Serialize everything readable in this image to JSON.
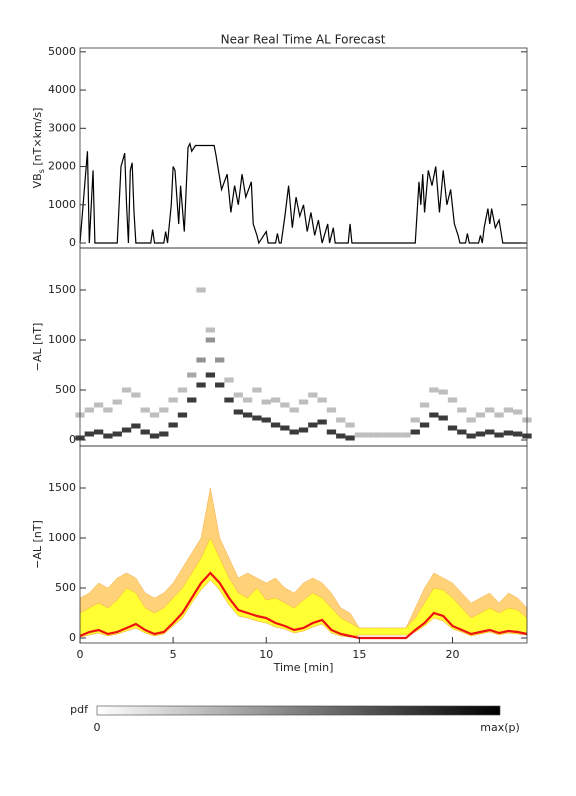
{
  "chart_data": [
    {
      "type": "line",
      "title": "Near Real Time AL Forecast",
      "ylabel": {
        "main": "VB",
        "sub": "s",
        "unit": " [nT×km/s]"
      },
      "color": "#000000",
      "xlim": [
        0,
        24
      ],
      "ylim": [
        -130,
        5100
      ],
      "yticks": [
        0,
        1000,
        2000,
        3000,
        4000,
        5000
      ],
      "x": [
        0,
        0.4,
        0.5,
        0.7,
        0.8,
        2.0,
        2.2,
        2.4,
        2.5,
        2.6,
        2.7,
        2.8,
        2.9,
        3.0,
        3.8,
        3.9,
        4.0,
        4.5,
        4.6,
        4.7,
        4.9,
        5.0,
        5.1,
        5.3,
        5.4,
        5.6,
        5.8,
        5.9,
        6.0,
        6.2,
        7.2,
        7.3,
        7.6,
        7.9,
        8.1,
        8.3,
        8.5,
        8.7,
        8.9,
        9.2,
        9.3,
        9.5,
        9.6,
        10.0,
        10.1,
        10.5,
        10.6,
        10.7,
        10.8,
        11.0,
        11.2,
        11.4,
        11.6,
        11.8,
        12.0,
        12.2,
        12.4,
        12.6,
        12.8,
        13.0,
        13.3,
        13.4,
        13.6,
        13.7,
        14.4,
        14.5,
        14.6,
        18.0,
        18.2,
        18.3,
        18.4,
        18.5,
        18.7,
        18.9,
        19.1,
        19.3,
        19.5,
        19.7,
        19.9,
        20.1,
        20.3,
        20.4,
        20.7,
        20.8,
        20.9,
        21.4,
        21.5,
        21.6,
        21.7,
        21.9,
        22.0,
        22.1,
        22.3,
        22.5,
        22.7,
        24
      ],
      "values": [
        0,
        2400,
        0,
        1900,
        0,
        0,
        2000,
        2350,
        1000,
        0,
        1900,
        2100,
        800,
        0,
        0,
        350,
        0,
        0,
        300,
        0,
        1000,
        2000,
        1900,
        500,
        1500,
        300,
        2500,
        2600,
        2400,
        2550,
        2550,
        2300,
        1400,
        1800,
        800,
        1500,
        1000,
        1800,
        1200,
        1600,
        500,
        200,
        0,
        300,
        0,
        0,
        250,
        0,
        0,
        700,
        1500,
        400,
        1200,
        700,
        1000,
        300,
        800,
        200,
        600,
        0,
        500,
        0,
        400,
        0,
        0,
        500,
        0,
        0,
        1600,
        1000,
        1800,
        800,
        1900,
        1500,
        2000,
        800,
        1900,
        1000,
        1400,
        500,
        200,
        0,
        0,
        250,
        0,
        0,
        200,
        0,
        400,
        900,
        500,
        900,
        400,
        600,
        0,
        0
      ]
    },
    {
      "type": "heatmap",
      "ylabel": "−AL [nT]",
      "color": "#000000",
      "xlim": [
        0,
        24
      ],
      "ylim": [
        -60,
        1920
      ],
      "yticks": [
        0,
        500,
        1000,
        1500
      ],
      "cell": [
        0.5,
        50
      ],
      "cells": [
        [
          0,
          20,
          0.9
        ],
        [
          0,
          250,
          0.3
        ],
        [
          0.5,
          60,
          0.9
        ],
        [
          0.5,
          300,
          0.3
        ],
        [
          1,
          80,
          0.9
        ],
        [
          1,
          350,
          0.3
        ],
        [
          1.5,
          40,
          0.9
        ],
        [
          1.5,
          300,
          0.3
        ],
        [
          2,
          60,
          0.9
        ],
        [
          2,
          380,
          0.3
        ],
        [
          2.5,
          100,
          0.9
        ],
        [
          2.5,
          500,
          0.3
        ],
        [
          3,
          140,
          0.9
        ],
        [
          3,
          450,
          0.3
        ],
        [
          3.5,
          80,
          0.9
        ],
        [
          3.5,
          300,
          0.3
        ],
        [
          4,
          40,
          0.9
        ],
        [
          4,
          250,
          0.3
        ],
        [
          4.5,
          60,
          0.9
        ],
        [
          4.5,
          300,
          0.3
        ],
        [
          5,
          150,
          0.9
        ],
        [
          5,
          400,
          0.3
        ],
        [
          5.5,
          250,
          0.9
        ],
        [
          5.5,
          500,
          0.3
        ],
        [
          6,
          400,
          0.9
        ],
        [
          6,
          650,
          0.4
        ],
        [
          6.5,
          550,
          0.9
        ],
        [
          6.5,
          800,
          0.5
        ],
        [
          7,
          650,
          0.9
        ],
        [
          7,
          1000,
          0.5
        ],
        [
          7,
          1100,
          0.3
        ],
        [
          6.5,
          1500,
          0.3
        ],
        [
          7.5,
          550,
          0.9
        ],
        [
          7.5,
          800,
          0.5
        ],
        [
          8,
          400,
          0.9
        ],
        [
          8,
          600,
          0.3
        ],
        [
          8.5,
          280,
          0.9
        ],
        [
          8.5,
          450,
          0.3
        ],
        [
          9,
          250,
          0.9
        ],
        [
          9,
          400,
          0.3
        ],
        [
          9.5,
          220,
          0.9
        ],
        [
          9.5,
          500,
          0.3
        ],
        [
          10,
          200,
          0.9
        ],
        [
          10,
          380,
          0.3
        ],
        [
          10.5,
          150,
          0.9
        ],
        [
          10.5,
          400,
          0.3
        ],
        [
          11,
          120,
          0.9
        ],
        [
          11,
          350,
          0.3
        ],
        [
          11.5,
          80,
          0.9
        ],
        [
          11.5,
          300,
          0.3
        ],
        [
          12,
          100,
          0.9
        ],
        [
          12,
          380,
          0.3
        ],
        [
          12.5,
          150,
          0.9
        ],
        [
          12.5,
          450,
          0.3
        ],
        [
          13,
          180,
          0.9
        ],
        [
          13,
          400,
          0.3
        ],
        [
          13.5,
          80,
          0.9
        ],
        [
          13.5,
          300,
          0.3
        ],
        [
          14,
          40,
          0.9
        ],
        [
          14,
          200,
          0.3
        ],
        [
          14.5,
          20,
          0.9
        ],
        [
          14.5,
          150,
          0.3
        ],
        [
          15,
          50,
          0.3
        ],
        [
          15.5,
          50,
          0.3
        ],
        [
          16,
          50,
          0.3
        ],
        [
          16.5,
          50,
          0.3
        ],
        [
          17,
          50,
          0.3
        ],
        [
          17.5,
          50,
          0.3
        ],
        [
          18,
          80,
          0.9
        ],
        [
          18,
          200,
          0.3
        ],
        [
          18.5,
          150,
          0.9
        ],
        [
          18.5,
          350,
          0.3
        ],
        [
          19,
          250,
          0.9
        ],
        [
          19,
          500,
          0.3
        ],
        [
          19.5,
          220,
          0.9
        ],
        [
          19.5,
          480,
          0.3
        ],
        [
          20,
          120,
          0.9
        ],
        [
          20,
          400,
          0.3
        ],
        [
          20.5,
          80,
          0.9
        ],
        [
          20.5,
          300,
          0.3
        ],
        [
          21,
          40,
          0.9
        ],
        [
          21,
          200,
          0.3
        ],
        [
          21.5,
          60,
          0.9
        ],
        [
          21.5,
          250,
          0.3
        ],
        [
          22,
          80,
          0.9
        ],
        [
          22,
          300,
          0.3
        ],
        [
          22.5,
          50,
          0.9
        ],
        [
          22.5,
          250,
          0.3
        ],
        [
          23,
          70,
          0.9
        ],
        [
          23,
          300,
          0.3
        ],
        [
          23.5,
          60,
          0.9
        ],
        [
          23.5,
          280,
          0.3
        ],
        [
          24,
          40,
          0.9
        ],
        [
          24,
          200,
          0.3
        ]
      ]
    },
    {
      "type": "band",
      "ylabel": "−AL [nT]",
      "xlabel": "Time [min]",
      "xlim": [
        0,
        24
      ],
      "xticks": [
        0,
        5,
        10,
        15,
        20
      ],
      "ylim": [
        -50,
        1920
      ],
      "yticks": [
        0,
        500,
        1000,
        1500
      ],
      "x": [
        0,
        0.5,
        1,
        1.5,
        2,
        2.5,
        3,
        3.5,
        4,
        4.5,
        5,
        5.5,
        6,
        6.5,
        7,
        7.5,
        8,
        8.5,
        9,
        9.5,
        10,
        10.5,
        11,
        11.5,
        12,
        12.5,
        13,
        13.5,
        14,
        14.5,
        15,
        15.5,
        16,
        16.5,
        17,
        17.5,
        18,
        18.5,
        19,
        19.5,
        20,
        20.5,
        21,
        21.5,
        22,
        22.5,
        23,
        23.5,
        24
      ],
      "series": [
        {
          "color": "#ffd27a",
          "values": [
            400,
            450,
            550,
            500,
            600,
            650,
            600,
            450,
            400,
            450,
            550,
            700,
            850,
            1000,
            1500,
            1000,
            800,
            600,
            650,
            600,
            550,
            600,
            500,
            450,
            550,
            600,
            550,
            450,
            300,
            250,
            100,
            100,
            100,
            100,
            100,
            100,
            300,
            500,
            650,
            600,
            550,
            450,
            350,
            400,
            450,
            350,
            450,
            400,
            300
          ]
        },
        {
          "color": "#ffff33",
          "values": [
            250,
            300,
            350,
            300,
            380,
            500,
            450,
            300,
            250,
            300,
            400,
            500,
            650,
            800,
            1000,
            800,
            600,
            450,
            400,
            500,
            380,
            400,
            350,
            300,
            380,
            450,
            400,
            300,
            200,
            150,
            100,
            100,
            100,
            100,
            100,
            100,
            200,
            350,
            500,
            480,
            400,
            300,
            200,
            250,
            300,
            250,
            300,
            280,
            200
          ]
        },
        {
          "color": "#ffd27a",
          "values": [
            10,
            30,
            50,
            20,
            40,
            70,
            100,
            50,
            20,
            40,
            120,
            200,
            350,
            480,
            580,
            480,
            330,
            220,
            200,
            170,
            150,
            110,
            90,
            50,
            70,
            110,
            140,
            50,
            20,
            10,
            30,
            30,
            30,
            30,
            30,
            30,
            60,
            120,
            200,
            170,
            90,
            60,
            20,
            40,
            60,
            30,
            50,
            40,
            30
          ]
        },
        {
          "color": "#ee1111",
          "values": [
            20,
            60,
            80,
            40,
            60,
            100,
            140,
            80,
            40,
            60,
            150,
            250,
            400,
            550,
            650,
            550,
            400,
            280,
            250,
            220,
            200,
            150,
            120,
            80,
            100,
            150,
            180,
            80,
            40,
            20,
            0,
            0,
            0,
            0,
            0,
            0,
            80,
            150,
            250,
            220,
            120,
            80,
            40,
            60,
            80,
            50,
            70,
            60,
            40
          ]
        }
      ]
    }
  ],
  "colorbar": {
    "label": "pdf",
    "min_label": "0",
    "max_label": "max(p)"
  }
}
